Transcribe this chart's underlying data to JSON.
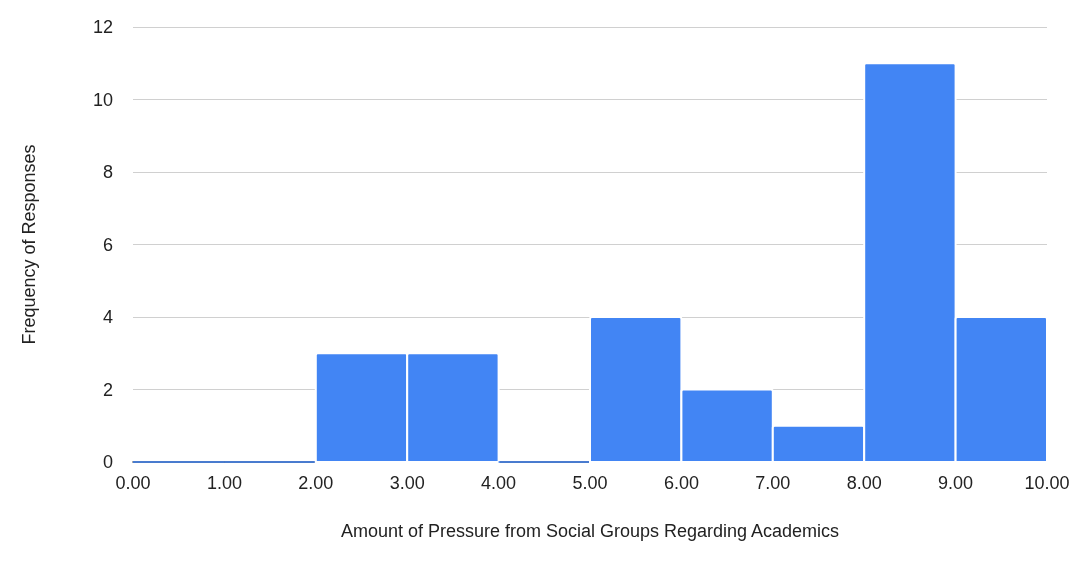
{
  "chart_data": {
    "type": "histogram",
    "xlabel": "Amount of Pressure from Social Groups Regarding Academics",
    "ylabel": "Frequency of Responses",
    "bins": [
      0,
      1,
      2,
      3,
      4,
      5,
      6,
      7,
      8,
      9,
      10
    ],
    "values": [
      0,
      0,
      3,
      3,
      0,
      4,
      2,
      1,
      11,
      4
    ],
    "color": "#4285f4",
    "xlim": [
      0,
      10
    ],
    "xticks": [
      {
        "value": 0,
        "label": "0.00"
      },
      {
        "value": 1,
        "label": "1.00"
      },
      {
        "value": 2,
        "label": "2.00"
      },
      {
        "value": 3,
        "label": "3.00"
      },
      {
        "value": 4,
        "label": "4.00"
      },
      {
        "value": 5,
        "label": "5.00"
      },
      {
        "value": 6,
        "label": "6.00"
      },
      {
        "value": 7,
        "label": "7.00"
      },
      {
        "value": 8,
        "label": "8.00"
      },
      {
        "value": 9,
        "label": "9.00"
      },
      {
        "value": 10,
        "label": "10.00"
      }
    ],
    "ylim": [
      0,
      12
    ],
    "yticks": [
      0,
      2,
      4,
      6,
      8,
      10,
      12
    ],
    "grid": "y"
  }
}
